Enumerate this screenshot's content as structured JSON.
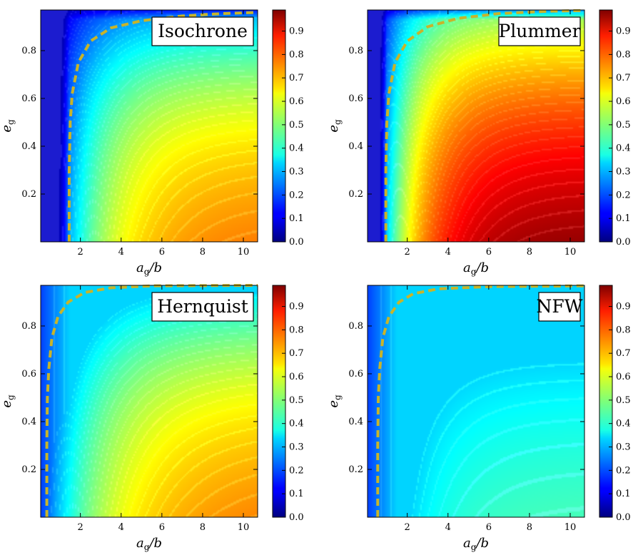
{
  "figure": {
    "panels": [
      {
        "id": "isochrone",
        "title": "Isochrone"
      },
      {
        "id": "plummer",
        "title": "Plummer"
      },
      {
        "id": "hernquist",
        "title": "Hernquist"
      },
      {
        "id": "nfw",
        "title": "NFW"
      }
    ]
  },
  "chart_data": [
    {
      "type": "heatmap",
      "title": "Isochrone",
      "xlabel": "a_g/b",
      "ylabel": "e_g",
      "xlim": [
        0.05,
        10.7
      ],
      "ylim": [
        0.0,
        0.97
      ],
      "xticks": [
        2,
        4,
        6,
        8,
        10
      ],
      "yticks": [
        0.2,
        0.4,
        0.6,
        0.8
      ],
      "colorbar": {
        "range": [
          0.0,
          0.99
        ],
        "ticks": [
          0.0,
          0.1,
          0.2,
          0.3,
          0.4,
          0.5,
          0.6,
          0.7,
          0.8,
          0.9
        ],
        "tick_labels": [
          "0.0",
          "0.1",
          "0.2",
          "0.3",
          "0.4",
          "0.5",
          "0.6",
          "0.7",
          "0.8",
          "0.9"
        ],
        "colormap": "jet"
      },
      "field_samples": [
        {
          "x": 1,
          "y": 0.1,
          "v": 0.05
        },
        {
          "x": 2,
          "y": 0.1,
          "v": 0.33
        },
        {
          "x": 4,
          "y": 0.1,
          "v": 0.52
        },
        {
          "x": 6,
          "y": 0.1,
          "v": 0.62
        },
        {
          "x": 8,
          "y": 0.1,
          "v": 0.68
        },
        {
          "x": 10.5,
          "y": 0.05,
          "v": 0.74
        },
        {
          "x": 4,
          "y": 0.5,
          "v": 0.45
        },
        {
          "x": 10,
          "y": 0.5,
          "v": 0.64
        },
        {
          "x": 4,
          "y": 0.85,
          "v": 0.3
        },
        {
          "x": 10,
          "y": 0.85,
          "v": 0.55
        }
      ],
      "contour_dashed": {
        "color": "#c8b42a",
        "x": [
          1.45,
          1.45,
          1.5,
          1.6,
          1.9,
          2.5,
          3.5,
          5.0,
          7.0,
          9.0,
          10.7
        ],
        "y": [
          0.0,
          0.3,
          0.5,
          0.62,
          0.75,
          0.84,
          0.895,
          0.925,
          0.945,
          0.955,
          0.96
        ]
      }
    },
    {
      "type": "heatmap",
      "title": "Plummer",
      "xlabel": "a_g/b",
      "ylabel": "e_g",
      "xlim": [
        0.05,
        10.7
      ],
      "ylim": [
        0.0,
        0.97
      ],
      "xticks": [
        2,
        4,
        6,
        8,
        10
      ],
      "yticks": [
        0.2,
        0.4,
        0.6,
        0.8
      ],
      "colorbar": {
        "range": [
          0.0,
          0.99
        ],
        "ticks": [
          0.0,
          0.1,
          0.2,
          0.3,
          0.4,
          0.5,
          0.6,
          0.7,
          0.8,
          0.9
        ],
        "tick_labels": [
          "0.0",
          "0.1",
          "0.2",
          "0.3",
          "0.4",
          "0.5",
          "0.6",
          "0.7",
          "0.8",
          "0.9"
        ],
        "colormap": "jet"
      },
      "field_samples": [
        {
          "x": 1,
          "y": 0.1,
          "v": 0.05
        },
        {
          "x": 2,
          "y": 0.1,
          "v": 0.45
        },
        {
          "x": 3,
          "y": 0.1,
          "v": 0.78
        },
        {
          "x": 6,
          "y": 0.1,
          "v": 0.88
        },
        {
          "x": 10.5,
          "y": 0.05,
          "v": 0.97
        },
        {
          "x": 4,
          "y": 0.5,
          "v": 0.7
        },
        {
          "x": 10,
          "y": 0.5,
          "v": 0.9
        },
        {
          "x": 4,
          "y": 0.85,
          "v": 0.45
        },
        {
          "x": 10,
          "y": 0.85,
          "v": 0.74
        }
      ],
      "contour_dashed": {
        "color": "#c8b42a",
        "x": [
          0.95,
          0.95,
          1.0,
          1.1,
          1.4,
          2.0,
          3.0,
          4.5,
          6.5,
          9.0,
          10.7
        ],
        "y": [
          0.0,
          0.3,
          0.5,
          0.62,
          0.75,
          0.84,
          0.9,
          0.935,
          0.955,
          0.965,
          0.968
        ]
      }
    },
    {
      "type": "heatmap",
      "title": "Hernquist",
      "xlabel": "a_g/b",
      "ylabel": "e_g",
      "xlim": [
        0.05,
        10.7
      ],
      "ylim": [
        0.0,
        0.97
      ],
      "xticks": [
        2,
        4,
        6,
        8,
        10
      ],
      "yticks": [
        0.2,
        0.4,
        0.6,
        0.8
      ],
      "colorbar": {
        "range": [
          0.0,
          0.99
        ],
        "ticks": [
          0.0,
          0.1,
          0.2,
          0.3,
          0.4,
          0.5,
          0.6,
          0.7,
          0.8,
          0.9
        ],
        "tick_labels": [
          "0.0",
          "0.1",
          "0.2",
          "0.3",
          "0.4",
          "0.5",
          "0.6",
          "0.7",
          "0.8",
          "0.9"
        ],
        "colormap": "jet"
      },
      "field_samples": [
        {
          "x": 1,
          "y": 0.1,
          "v": 0.35
        },
        {
          "x": 2,
          "y": 0.1,
          "v": 0.45
        },
        {
          "x": 4,
          "y": 0.1,
          "v": 0.57
        },
        {
          "x": 6,
          "y": 0.1,
          "v": 0.65
        },
        {
          "x": 10.5,
          "y": 0.05,
          "v": 0.74
        },
        {
          "x": 4,
          "y": 0.5,
          "v": 0.5
        },
        {
          "x": 10,
          "y": 0.5,
          "v": 0.66
        },
        {
          "x": 4,
          "y": 0.85,
          "v": 0.36
        },
        {
          "x": 10,
          "y": 0.85,
          "v": 0.56
        }
      ],
      "contour_dashed": {
        "color": "#c8b42a",
        "x": [
          0.35,
          0.35,
          0.38,
          0.45,
          0.6,
          0.9,
          1.4,
          2.2,
          3.5,
          5.5,
          10.7
        ],
        "y": [
          0.0,
          0.3,
          0.5,
          0.62,
          0.75,
          0.84,
          0.9,
          0.94,
          0.96,
          0.968,
          0.97
        ]
      }
    },
    {
      "type": "heatmap",
      "title": "NFW",
      "xlabel": "a_g/b",
      "ylabel": "e_g",
      "xlim": [
        0.05,
        10.7
      ],
      "ylim": [
        0.0,
        0.97
      ],
      "xticks": [
        2,
        4,
        6,
        8,
        10
      ],
      "yticks": [
        0.2,
        0.4,
        0.6,
        0.8
      ],
      "colorbar": {
        "range": [
          0.0,
          0.99
        ],
        "ticks": [
          0.0,
          0.1,
          0.2,
          0.3,
          0.4,
          0.5,
          0.6,
          0.7,
          0.8,
          0.9
        ],
        "tick_labels": [
          "0.0",
          "0.1",
          "0.2",
          "0.3",
          "0.4",
          "0.5",
          "0.6",
          "0.7",
          "0.8",
          "0.9"
        ],
        "colormap": "jet"
      },
      "field_samples": [
        {
          "x": 1,
          "y": 0.1,
          "v": 0.3
        },
        {
          "x": 2,
          "y": 0.1,
          "v": 0.34
        },
        {
          "x": 4,
          "y": 0.1,
          "v": 0.38
        },
        {
          "x": 8,
          "y": 0.1,
          "v": 0.42
        },
        {
          "x": 10.5,
          "y": 0.05,
          "v": 0.45
        },
        {
          "x": 4,
          "y": 0.5,
          "v": 0.35
        },
        {
          "x": 10,
          "y": 0.5,
          "v": 0.42
        },
        {
          "x": 4,
          "y": 0.85,
          "v": 0.3
        },
        {
          "x": 10,
          "y": 0.85,
          "v": 0.38
        }
      ],
      "contour_dashed": {
        "color": "#c8b42a",
        "x": [
          0.55,
          0.55,
          0.58,
          0.65,
          0.8,
          1.1,
          1.6,
          2.3,
          3.5,
          6.0,
          10.7
        ],
        "y": [
          0.0,
          0.3,
          0.5,
          0.62,
          0.75,
          0.84,
          0.9,
          0.935,
          0.955,
          0.965,
          0.968
        ]
      }
    }
  ]
}
